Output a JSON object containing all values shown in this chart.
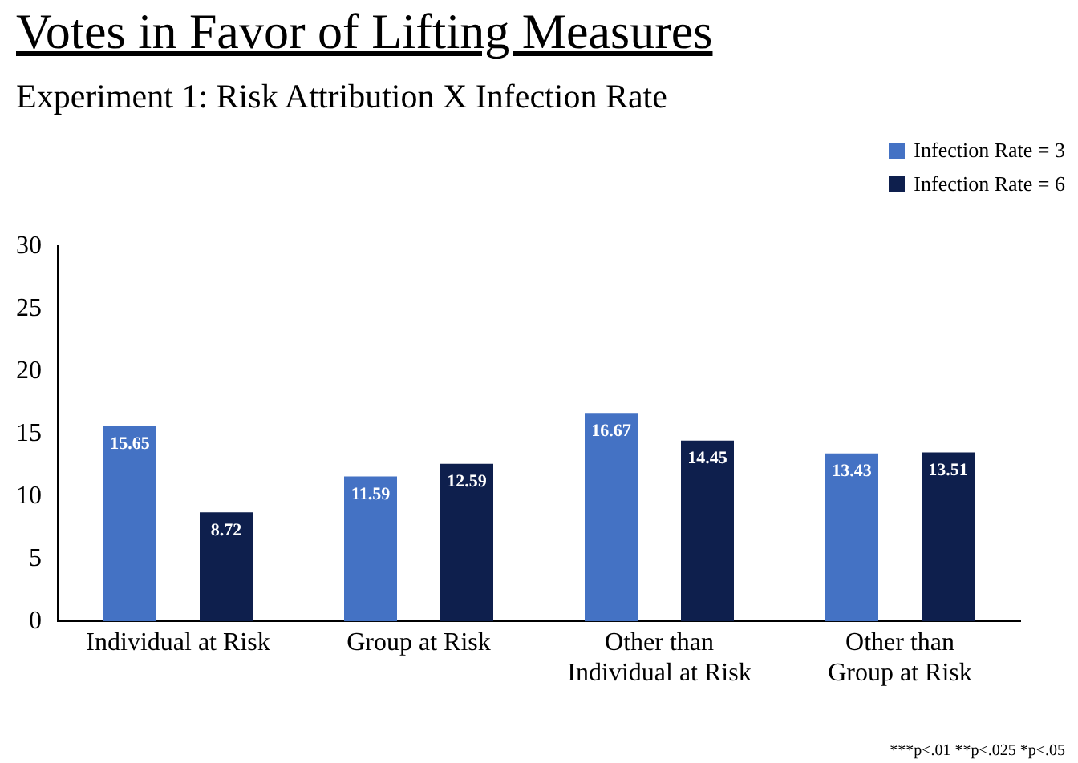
{
  "chart_data": {
    "type": "bar",
    "title": "Votes in Favor of Lifting Measures",
    "subtitle": "Experiment 1: Risk Attribution X Infection Rate",
    "categories": [
      "Individual at Risk",
      "Group at Risk",
      "Other than\nIndividual at Risk",
      "Other than\nGroup at Risk"
    ],
    "series": [
      {
        "name": "Infection Rate = 3",
        "color": "#4472c4",
        "values": [
          15.65,
          11.59,
          16.67,
          13.43
        ]
      },
      {
        "name": "Infection Rate = 6",
        "color": "#0e1f4d",
        "values": [
          8.72,
          12.59,
          14.45,
          13.51
        ]
      }
    ],
    "ylim": [
      0,
      30
    ],
    "yticks": [
      0,
      5,
      10,
      15,
      20,
      25,
      30
    ],
    "grid": false,
    "legend": "top right",
    "data_labels": true,
    "annotations": [
      "***p<.01 **p<.025 *p<.05"
    ]
  }
}
